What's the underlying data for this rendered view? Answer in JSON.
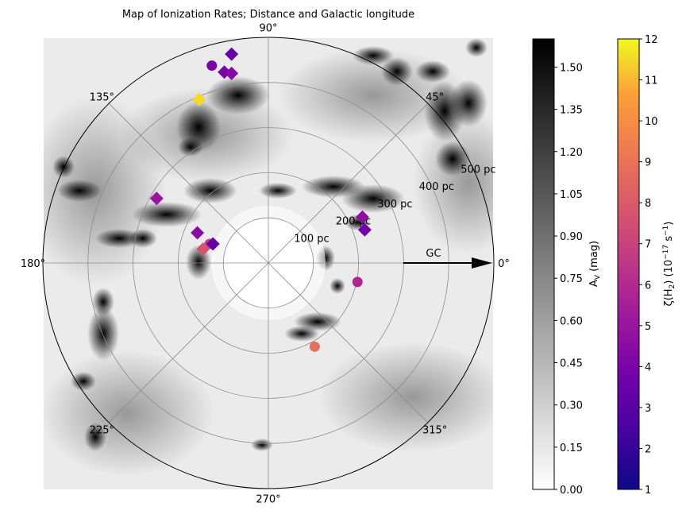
{
  "chart_data": {
    "type": "scatter",
    "projection": "polar",
    "title": "Map of Ionization Rates; Distance and Galactic longitude",
    "angular_axis": {
      "unit": "deg",
      "zero_direction": "east",
      "direction": "counterclockwise",
      "ticks": [
        0,
        45,
        90,
        135,
        180,
        225,
        270,
        315
      ],
      "tick_labels": [
        "0°",
        "45°",
        "90°",
        "135°",
        "180°",
        "225°",
        "270°",
        "315°"
      ]
    },
    "radial_axis": {
      "unit": "pc",
      "range": [
        0,
        500
      ],
      "ticks": [
        100,
        200,
        300,
        400,
        500
      ],
      "tick_labels": [
        "100 pc",
        "200 pc",
        "300 pc",
        "400 pc",
        "500 pc"
      ]
    },
    "background_map": {
      "quantity": "A_V",
      "colorbar_label": "A_V (mag)",
      "range": [
        0,
        1.6
      ],
      "ticks": [
        0.0,
        0.15,
        0.3,
        0.45,
        0.6,
        0.75,
        0.9,
        1.05,
        1.2,
        1.35,
        1.5
      ],
      "tick_labels": [
        "0.00",
        "0.15",
        "0.30",
        "0.45",
        "0.60",
        "0.75",
        "0.90",
        "1.05",
        "1.20",
        "1.35",
        "1.50"
      ],
      "colormap": [
        "#ffffff",
        "#000000"
      ]
    },
    "color_axis": {
      "quantity": "zeta(H2)",
      "colorbar_label": "ζ(H₂) (10⁻¹⁷ s⁻¹)",
      "range": [
        1,
        12
      ],
      "ticks": [
        1,
        2,
        3,
        4,
        5,
        6,
        7,
        8,
        9,
        10,
        11,
        12
      ],
      "tick_labels": [
        "1",
        "2",
        "3",
        "4",
        "5",
        "6",
        "7",
        "8",
        "9",
        "10",
        "11",
        "12"
      ],
      "colormap": "plasma"
    },
    "annotation": {
      "text": "GC",
      "arrow_direction_deg": 0
    },
    "grid": true,
    "points": [
      {
        "l": 106,
        "d": 455,
        "zeta": 4.0,
        "marker": "circle"
      },
      {
        "l": 100,
        "d": 470,
        "zeta": 3.4,
        "marker": "diamond"
      },
      {
        "l": 103,
        "d": 434,
        "zeta": 4.0,
        "marker": "diamond"
      },
      {
        "l": 101,
        "d": 428,
        "zeta": 4.4,
        "marker": "diamond"
      },
      {
        "l": 113,
        "d": 393,
        "zeta": 11.5,
        "marker": "diamond"
      },
      {
        "l": 157,
        "d": 171,
        "zeta": 4.4,
        "marker": "diamond"
      },
      {
        "l": 150,
        "d": 286,
        "zeta": 5.0,
        "marker": "diamond"
      },
      {
        "l": 162,
        "d": 137,
        "zeta": 6.8,
        "marker": "circle"
      },
      {
        "l": 168,
        "d": 148,
        "zeta": 7.7,
        "marker": "diamond"
      },
      {
        "l": 161,
        "d": 130,
        "zeta": 3.3,
        "marker": "diamond"
      },
      {
        "l": 26,
        "d": 232,
        "zeta": 4.6,
        "marker": "diamond"
      },
      {
        "l": 19,
        "d": 226,
        "zeta": 3.7,
        "marker": "diamond"
      },
      {
        "l": 348,
        "d": 202,
        "zeta": 5.8,
        "marker": "circle"
      },
      {
        "l": 299,
        "d": 212,
        "zeta": 8.8,
        "marker": "circle"
      }
    ]
  }
}
